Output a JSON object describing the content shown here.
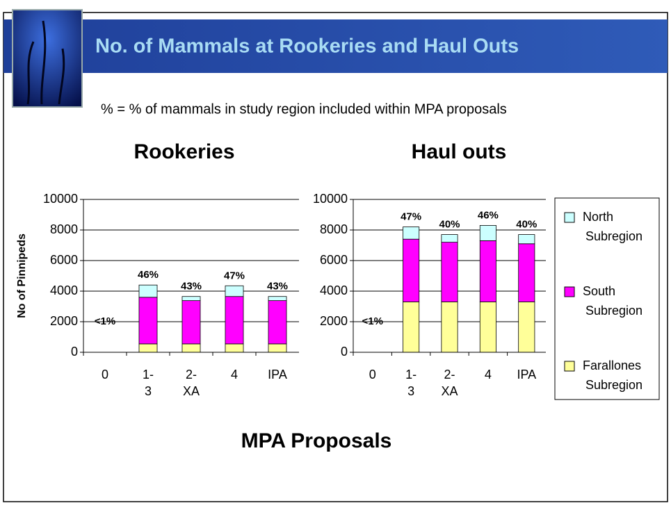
{
  "title": "No. of Mammals at Rookeries and Haul Outs",
  "subtitle": "% = % of mammals in study region included within MPA proposals",
  "x_label": "MPA Proposals",
  "chart_data": [
    {
      "type": "stacked_bar",
      "title": "Rookeries",
      "y_label": "No of Pinnipeds",
      "categories": [
        "0",
        "1-3",
        "2-XA",
        "4",
        "IPA"
      ],
      "series": [
        {
          "name": "Farallones Subregion",
          "color": "#ffff99",
          "values": [
            0,
            550,
            550,
            550,
            550
          ]
        },
        {
          "name": "South Subregion",
          "color": "#ff00ff",
          "values": [
            0,
            3050,
            2830,
            3100,
            2830
          ]
        },
        {
          "name": "North Subregion",
          "color": "#ccffff",
          "values": [
            0,
            800,
            270,
            700,
            270
          ]
        }
      ],
      "annotations": [
        "<1%",
        "46%",
        "43%",
        "47%",
        "43%"
      ],
      "ylim": [
        0,
        10000
      ],
      "yticks": [
        0,
        2000,
        4000,
        6000,
        8000,
        10000
      ],
      "grid": true
    },
    {
      "type": "stacked_bar",
      "title": "Haul outs",
      "categories": [
        "0",
        "1-3",
        "2-XA",
        "4",
        "IPA"
      ],
      "series": [
        {
          "name": "Farallones Subregion",
          "color": "#ffff99",
          "values": [
            0,
            3300,
            3300,
            3300,
            3300
          ]
        },
        {
          "name": "South Subregion",
          "color": "#ff00ff",
          "values": [
            0,
            4100,
            3900,
            4000,
            3800
          ]
        },
        {
          "name": "North Subregion",
          "color": "#ccffff",
          "values": [
            0,
            800,
            500,
            1000,
            600
          ]
        }
      ],
      "annotations": [
        "<1%",
        "47%",
        "40%",
        "46%",
        "40%"
      ],
      "ylim": [
        0,
        10000
      ],
      "yticks": [
        0,
        2000,
        4000,
        6000,
        8000,
        10000
      ],
      "grid": true,
      "legend": "right"
    }
  ]
}
